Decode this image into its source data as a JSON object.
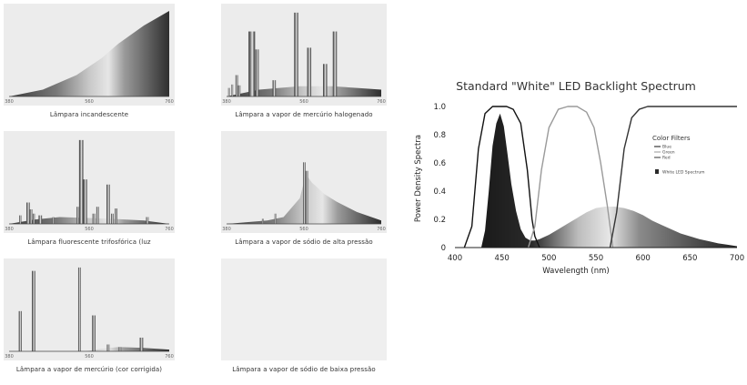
{
  "chart_data": [
    {
      "type": "area",
      "caption": "Lâmpara incandescente",
      "tick_labels": [
        "380",
        "",
        "560",
        "",
        "760"
      ],
      "bg": "#ececec",
      "curve": {
        "x": [
          380,
          460,
          540,
          600,
          640,
          700,
          760
        ],
        "y": [
          0.0,
          0.08,
          0.25,
          0.45,
          0.62,
          0.83,
          1.0
        ]
      },
      "bars": []
    },
    {
      "type": "bar",
      "caption": "Lâmpara a vapor de mercúrio halogenado",
      "tick_labels": [
        "380",
        "",
        "560",
        "",
        "760"
      ],
      "bg": "#ececec",
      "curve": {
        "x": [
          380,
          460,
          560,
          640,
          700,
          760
        ],
        "y": [
          0.0,
          0.08,
          0.12,
          0.12,
          0.1,
          0.08
        ]
      },
      "bars": [
        {
          "x": 384,
          "w": 4,
          "h": 0.1
        },
        {
          "x": 392,
          "w": 4,
          "h": 0.14
        },
        {
          "x": 402,
          "w": 6,
          "h": 0.25
        },
        {
          "x": 408,
          "w": 6,
          "h": 0.13
        },
        {
          "x": 434,
          "w": 16,
          "h": 0.76
        },
        {
          "x": 451,
          "w": 8,
          "h": 0.55
        },
        {
          "x": 493,
          "w": 8,
          "h": 0.19
        },
        {
          "x": 546,
          "w": 10,
          "h": 0.98
        },
        {
          "x": 578,
          "w": 10,
          "h": 0.57
        },
        {
          "x": 617,
          "w": 10,
          "h": 0.38
        },
        {
          "x": 641,
          "w": 10,
          "h": 0.76
        }
      ]
    },
    {
      "type": "bar",
      "caption": "Lâmpara fluorescente trifosfórica (luz",
      "tick_labels": [
        "380",
        "",
        "560",
        "",
        "760"
      ],
      "bg": "#ececec",
      "curve": {
        "x": [
          380,
          440,
          500,
          560,
          620,
          700,
          760
        ],
        "y": [
          0.0,
          0.05,
          0.08,
          0.07,
          0.06,
          0.04,
          0.0
        ]
      },
      "bars": [
        {
          "x": 404,
          "w": 5,
          "h": 0.1
        },
        {
          "x": 421,
          "w": 8,
          "h": 0.25
        },
        {
          "x": 429,
          "w": 6,
          "h": 0.17
        },
        {
          "x": 436,
          "w": 5,
          "h": 0.12
        },
        {
          "x": 450,
          "w": 8,
          "h": 0.1
        },
        {
          "x": 483,
          "w": 4,
          "h": 0.08
        },
        {
          "x": 540,
          "w": 5,
          "h": 0.2
        },
        {
          "x": 546,
          "w": 10,
          "h": 0.98
        },
        {
          "x": 556,
          "w": 9,
          "h": 0.52
        },
        {
          "x": 578,
          "w": 6,
          "h": 0.12
        },
        {
          "x": 587,
          "w": 6,
          "h": 0.2
        },
        {
          "x": 611,
          "w": 8,
          "h": 0.46
        },
        {
          "x": 622,
          "w": 6,
          "h": 0.12
        },
        {
          "x": 631,
          "w": 6,
          "h": 0.18
        },
        {
          "x": 705,
          "w": 6,
          "h": 0.08
        }
      ]
    },
    {
      "type": "area",
      "caption": "Lâmpara a vapor de sódio de alta pressão",
      "tick_labels": [
        "380",
        "",
        "560",
        "",
        "760"
      ],
      "bg": "#ececec",
      "curve": {
        "x": [
          380,
          430,
          480,
          520,
          560,
          575,
          590,
          600,
          620,
          650,
          700,
          760
        ],
        "y": [
          0.0,
          0.02,
          0.04,
          0.08,
          0.3,
          0.58,
          0.48,
          0.44,
          0.35,
          0.26,
          0.14,
          0.04
        ]
      },
      "bars": [
        {
          "x": 568,
          "w": 6,
          "h": 0.72
        },
        {
          "x": 574,
          "w": 6,
          "h": 0.62
        },
        {
          "x": 498,
          "w": 4,
          "h": 0.12
        },
        {
          "x": 467,
          "w": 4,
          "h": 0.06
        }
      ]
    },
    {
      "type": "bar",
      "caption": "Lâmpara a vapor de mercúrio (cor corrigida)",
      "tick_labels": [
        "380",
        "",
        "560",
        "",
        "760"
      ],
      "bg": "#ececec",
      "curve": {
        "x": [
          380,
          560,
          600,
          640,
          700,
          760
        ],
        "y": [
          0.0,
          0.0,
          0.03,
          0.05,
          0.04,
          0.02
        ]
      },
      "bars": [
        {
          "x": 403,
          "w": 7,
          "h": 0.47
        },
        {
          "x": 434,
          "w": 8,
          "h": 0.94
        },
        {
          "x": 544,
          "w": 6,
          "h": 0.98
        },
        {
          "x": 577,
          "w": 8,
          "h": 0.42
        },
        {
          "x": 612,
          "w": 6,
          "h": 0.08
        },
        {
          "x": 640,
          "w": 6,
          "h": 0.05
        },
        {
          "x": 690,
          "w": 8,
          "h": 0.16
        }
      ]
    },
    {
      "type": "bar",
      "caption": "Lâmpara a vapor de sódio de baixa pressão",
      "tick_labels": [],
      "bg": "#efefef",
      "curve": {
        "x": [],
        "y": []
      },
      "bars": []
    },
    {
      "type": "area",
      "title": "Standard \"White\" LED Backlight Spectrum",
      "xlabel": "Wavelength (nm)",
      "ylabel": "Power Density Spectra",
      "xlim": [
        400,
        700
      ],
      "ylim": [
        0,
        1.0
      ],
      "xticks": [
        400,
        450,
        500,
        550,
        600,
        650,
        700
      ],
      "yticks": [
        0,
        0.2,
        0.4,
        0.6,
        0.8,
        1.0
      ],
      "legend_title": "Color Filters",
      "legend_position": "right",
      "series": [
        {
          "name": "Blue",
          "role": "filter",
          "x": [
            410,
            418,
            425,
            432,
            440,
            448,
            455,
            462,
            470,
            477,
            482,
            485,
            490
          ],
          "y": [
            0.0,
            0.15,
            0.7,
            0.95,
            1.0,
            1.0,
            1.0,
            0.98,
            0.88,
            0.55,
            0.2,
            0.08,
            0.0
          ],
          "color": "#111111"
        },
        {
          "name": "Green",
          "role": "filter",
          "x": [
            478,
            485,
            492,
            500,
            510,
            520,
            530,
            540,
            548,
            555,
            562,
            568
          ],
          "y": [
            0.0,
            0.15,
            0.55,
            0.85,
            0.98,
            1.0,
            1.0,
            0.96,
            0.85,
            0.6,
            0.3,
            0.0
          ],
          "color": "#9a9a9a"
        },
        {
          "name": "Red",
          "role": "filter",
          "x": [
            565,
            572,
            580,
            588,
            596,
            605,
            620,
            650,
            700
          ],
          "y": [
            0.0,
            0.25,
            0.7,
            0.92,
            0.98,
            1.0,
            1.0,
            1.0,
            1.0
          ],
          "color": "#333333"
        },
        {
          "name": "White LED Spectrum",
          "role": "fill",
          "x": [
            428,
            432,
            436,
            440,
            444,
            448,
            452,
            456,
            460,
            465,
            470,
            475,
            480,
            485,
            490,
            500,
            510,
            520,
            530,
            540,
            550,
            560,
            570,
            580,
            590,
            600,
            610,
            620,
            630,
            640,
            650,
            660,
            670,
            680,
            690,
            700
          ],
          "y": [
            0.0,
            0.12,
            0.4,
            0.72,
            0.88,
            0.95,
            0.86,
            0.66,
            0.45,
            0.26,
            0.13,
            0.07,
            0.05,
            0.05,
            0.06,
            0.09,
            0.13,
            0.17,
            0.21,
            0.25,
            0.28,
            0.29,
            0.29,
            0.28,
            0.26,
            0.23,
            0.19,
            0.16,
            0.13,
            0.1,
            0.08,
            0.06,
            0.045,
            0.03,
            0.02,
            0.01
          ],
          "color": "#2b2b2b"
        }
      ]
    }
  ]
}
